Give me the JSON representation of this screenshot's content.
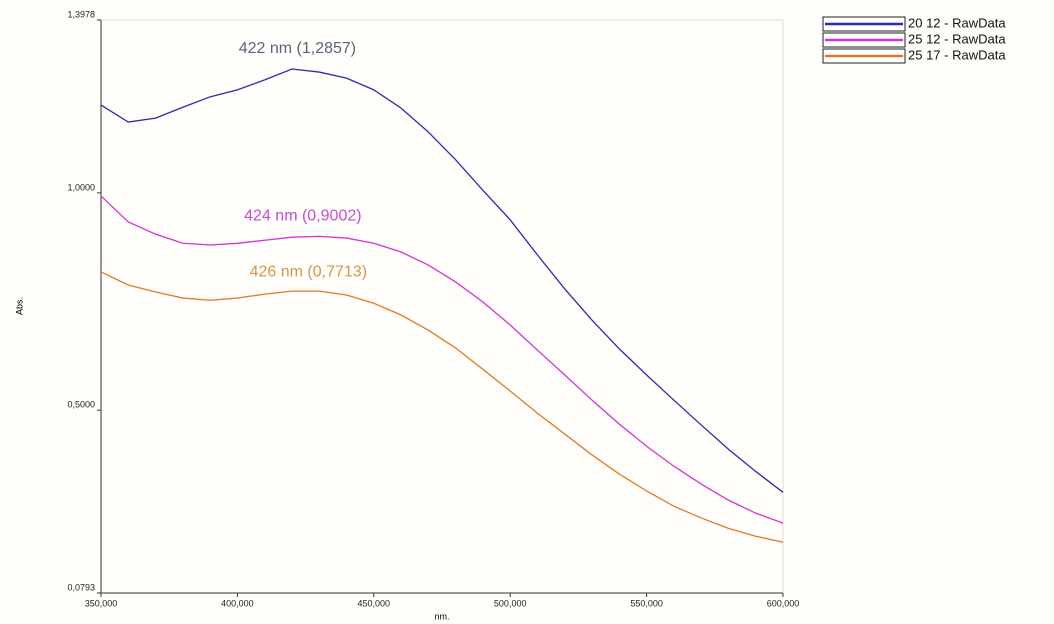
{
  "chart_data": {
    "type": "line",
    "x_label": "nm.",
    "y_label": "Abs.",
    "x": [
      350,
      360,
      370,
      380,
      390,
      400,
      410,
      420,
      430,
      440,
      450,
      460,
      470,
      480,
      490,
      500,
      510,
      520,
      530,
      540,
      550,
      560,
      570,
      580,
      590,
      600
    ],
    "series": [
      {
        "name": "20 12 - RawData",
        "color": "#2b2bb0",
        "values": [
          1.202,
          1.163,
          1.172,
          1.197,
          1.221,
          1.237,
          1.26,
          1.285,
          1.278,
          1.264,
          1.237,
          1.195,
          1.14,
          1.076,
          1.006,
          0.938,
          0.857,
          0.779,
          0.707,
          0.641,
          0.581,
          0.523,
          0.466,
          0.41,
          0.359,
          0.311
        ]
      },
      {
        "name": "25 12 - RawData",
        "color": "#d633d6",
        "values": [
          0.993,
          0.933,
          0.905,
          0.884,
          0.88,
          0.884,
          0.891,
          0.898,
          0.9,
          0.896,
          0.884,
          0.864,
          0.834,
          0.795,
          0.749,
          0.696,
          0.638,
          0.581,
          0.523,
          0.468,
          0.417,
          0.371,
          0.33,
          0.293,
          0.263,
          0.24
        ]
      },
      {
        "name": "25 17 - RawData",
        "color": "#e07a2a",
        "values": [
          0.818,
          0.788,
          0.772,
          0.758,
          0.753,
          0.758,
          0.767,
          0.774,
          0.774,
          0.765,
          0.746,
          0.719,
          0.684,
          0.643,
          0.594,
          0.544,
          0.493,
          0.445,
          0.397,
          0.353,
          0.314,
          0.279,
          0.252,
          0.228,
          0.21,
          0.196
        ]
      }
    ],
    "annotations": [
      {
        "text": "422 nm (1,2857)",
        "x": 422,
        "y": 1.2857,
        "color": "#5b6478"
      },
      {
        "text": "424 nm (0,9002)",
        "x": 424,
        "y": 0.9002,
        "color": "#c84ccf"
      },
      {
        "text": "426 nm (0,7713)",
        "x": 426,
        "y": 0.7713,
        "color": "#d9954a"
      }
    ],
    "xlim": [
      350,
      600
    ],
    "ylim": [
      0.0793,
      1.3978
    ],
    "xticks": [
      {
        "value": 350,
        "label": "350,000"
      },
      {
        "value": 400,
        "label": "400,000"
      },
      {
        "value": 450,
        "label": "450,000"
      },
      {
        "value": 500,
        "label": "500,000"
      },
      {
        "value": 550,
        "label": "550,000"
      },
      {
        "value": 600,
        "label": "600,000"
      }
    ],
    "yticks": [
      {
        "value": 0.0793,
        "label": "0,0793"
      },
      {
        "value": 0.5,
        "label": "0,5000"
      },
      {
        "value": 1.0,
        "label": "1,0000"
      },
      {
        "value": 1.3978,
        "label": "1,3978"
      }
    ],
    "grid": false,
    "legend": "top-right"
  }
}
